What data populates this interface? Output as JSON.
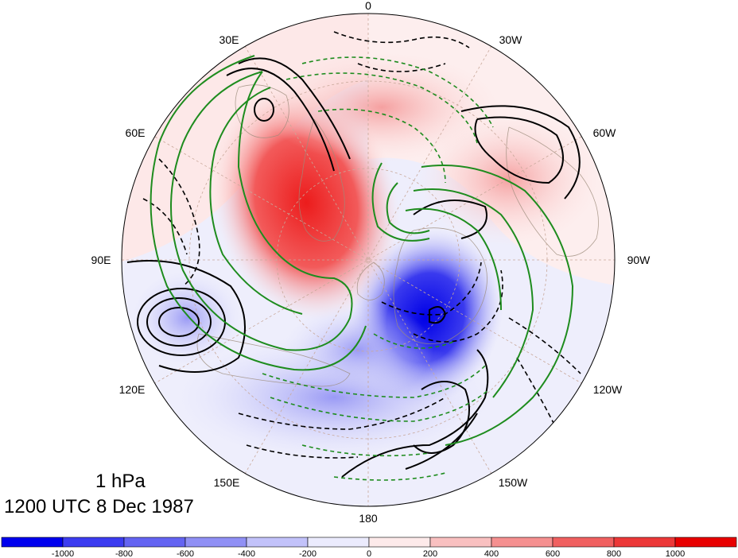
{
  "map": {
    "projection": "polar stereographic, north pole",
    "longitude_labels": [
      "0",
      "30W",
      "60W",
      "90W",
      "120W",
      "150W",
      "180",
      "150E",
      "120E",
      "90E",
      "60E",
      "30E"
    ],
    "contour_styles": {
      "positive": "solid black",
      "negative": "dashed black",
      "green_positive": "solid green",
      "green_negative": "dashed green"
    }
  },
  "caption": {
    "level": "1 hPa",
    "time": "1200 UTC 8 Dec 1987"
  },
  "colorbar": {
    "tick_labels": [
      "-1000",
      "-800",
      "-600",
      "-400",
      "-200",
      "0",
      "200",
      "400",
      "600",
      "800",
      "1000"
    ],
    "colors": [
      "#0000ee",
      "#3c3cf0",
      "#6464f2",
      "#9090f5",
      "#c2c2fa",
      "#ebebfd",
      "#fdeaea",
      "#f9c0c0",
      "#f59090",
      "#f06060",
      "#ec3838",
      "#e80000"
    ]
  }
}
